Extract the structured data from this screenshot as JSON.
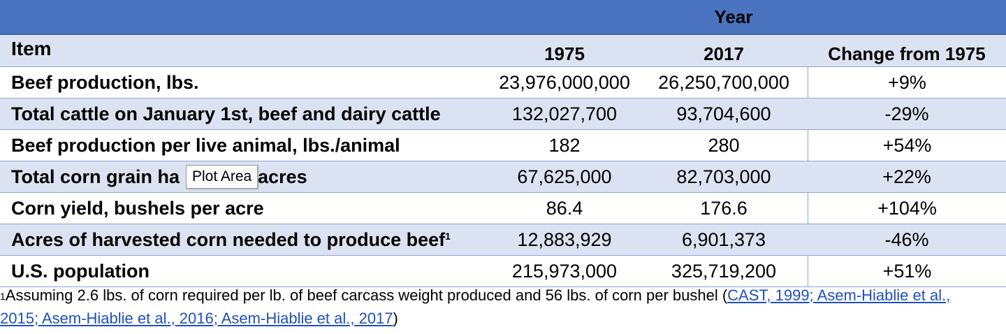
{
  "header": {
    "year_label": "Year",
    "item_label": "Item",
    "col_1975": "1975",
    "col_2017": "2017",
    "col_change": "Change from 1975"
  },
  "rows": [
    {
      "item": "Beef production, lbs.",
      "y1975": "23,976,000,000",
      "y2017": "26,250,700,000",
      "change": "+9%"
    },
    {
      "item": "Total cattle on January 1st, beef and dairy cattle",
      "y1975": "132,027,700",
      "y2017": "93,704,600",
      "change": "-29%"
    },
    {
      "item": "Beef production per live animal, lbs./animal",
      "y1975": "182",
      "y2017": "280",
      "change": "+54%"
    },
    {
      "item_part1": "Total corn grain ha",
      "item_part2": "acres",
      "y1975": "67,625,000",
      "y2017": "82,703,000",
      "change": "+22%"
    },
    {
      "item": "Corn yield, bushels per acre",
      "y1975": "86.4",
      "y2017": "176.6",
      "change": "+104%"
    },
    {
      "item": "Acres of harvested corn needed to produce beef",
      "sup": "1",
      "y1975": "12,883,929",
      "y2017": "6,901,373",
      "change": "-46%"
    },
    {
      "item": "U.S. population",
      "y1975": "215,973,000",
      "y2017": "325,719,200",
      "change": "+51%"
    }
  ],
  "footnote": {
    "sup": "1",
    "text": "Assuming 2.6 lbs. of corn required per lb. of beef carcass weight produced and 56 lbs. of corn per bushel (",
    "link": "CAST, 1999; Asem-Hiablie et al., 2015; Asem-Hiablie et al., 2016; Asem-Hiablie et al., 2017",
    "close": ")"
  },
  "tooltip": {
    "label": "Plot Area"
  },
  "colors": {
    "header_bg": "#4a74c0",
    "row_shade": "#dbe3f2",
    "link": "#1f4fbf"
  }
}
